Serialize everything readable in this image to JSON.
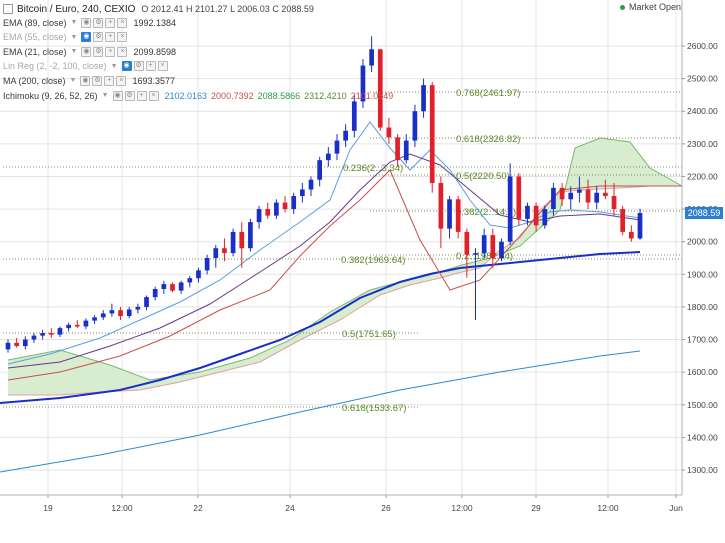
{
  "header": {
    "symbol": "Bitcoin / Euro, 240, CEXIO",
    "o_label": "O",
    "o_value": "2012.41",
    "h_label": "H",
    "h_value": "2101.27",
    "l_label": "L",
    "l_value": "2006.03",
    "c_label": "C",
    "c_value": "2088.59",
    "market_status": "Market Open"
  },
  "indicators": [
    {
      "name": "EMA (89, close)",
      "value": "1992.1384",
      "active": false,
      "faded": false
    },
    {
      "name": "EMA (55, close)",
      "value": "",
      "active": true,
      "faded": true
    },
    {
      "name": "EMA (21, close)",
      "value": "2099.8598",
      "active": false,
      "faded": false
    },
    {
      "name": "Lin Reg (2, -2, 100, close)",
      "value": "",
      "active": true,
      "faded": true
    },
    {
      "name": "MA (200, close)",
      "value": "1693.3577",
      "active": false,
      "faded": false
    },
    {
      "name": "Ichimoku (9, 26, 52, 26)",
      "values": [
        "2102.0163",
        "2000.7392",
        "2088.5866",
        "2312.4210",
        "2101.0549"
      ]
    }
  ],
  "price_axis": {
    "ticks": [
      "2600.00",
      "2500.00",
      "2400.00",
      "2300.00",
      "2200.00",
      "2100.00",
      "2000.00",
      "1900.00",
      "1800.00",
      "1700.00",
      "1600.00",
      "1500.00",
      "1400.00",
      "1300.00"
    ],
    "last_price": "2088.59"
  },
  "time_axis": {
    "ticks": [
      "19",
      "12:00",
      "22",
      "24",
      "26",
      "12:00",
      "29",
      "12:00",
      "Jun"
    ]
  },
  "fib_labels": [
    "0.768(2461.97)",
    "0.618(2326.82)",
    "0.236(2‥3.34)",
    "0.5(2220.50)",
    "0.382(2‥14.8)",
    "0.382(1969.64)",
    "0.2‥1982.64)",
    "0.5(1751.65)",
    "0.618(1533.67)"
  ],
  "colors": {
    "up": "#1a2ec8",
    "down": "#e0202a",
    "ma200": "#1a2ec8",
    "ema21": "#5aa0dc",
    "ema89": "#6a3a8a",
    "lagging": "#2a8ad4",
    "kumo": "#d8ecd0",
    "kumo_edge": "#7ab870",
    "kijun": "#c8504a",
    "fib": "#5a8a2a",
    "grid": "#e4e4e4",
    "accent": "#2a7fd4"
  },
  "chart_data": {
    "type": "candlestick",
    "symbol": "Bitcoin / Euro",
    "interval": "240",
    "ylim": [
      1300,
      2680
    ],
    "y_ticks": [
      2600,
      2500,
      2400,
      2300,
      2200,
      2100,
      2000,
      1900,
      1800,
      1700,
      1600,
      1500,
      1400,
      1300
    ],
    "candles": [
      [
        1670,
        1700,
        1660,
        1690
      ],
      [
        1690,
        1705,
        1675,
        1680
      ],
      [
        1680,
        1710,
        1670,
        1700
      ],
      [
        1700,
        1720,
        1690,
        1712
      ],
      [
        1712,
        1730,
        1700,
        1720
      ],
      [
        1720,
        1735,
        1705,
        1715
      ],
      [
        1715,
        1740,
        1708,
        1735
      ],
      [
        1735,
        1752,
        1725,
        1745
      ],
      [
        1745,
        1760,
        1735,
        1740
      ],
      [
        1740,
        1765,
        1732,
        1758
      ],
      [
        1758,
        1775,
        1748,
        1768
      ],
      [
        1768,
        1790,
        1760,
        1780
      ],
      [
        1780,
        1810,
        1770,
        1790
      ],
      [
        1790,
        1800,
        1760,
        1772
      ],
      [
        1772,
        1800,
        1765,
        1792
      ],
      [
        1792,
        1810,
        1780,
        1800
      ],
      [
        1800,
        1835,
        1790,
        1830
      ],
      [
        1830,
        1862,
        1820,
        1855
      ],
      [
        1855,
        1880,
        1840,
        1870
      ],
      [
        1870,
        1875,
        1845,
        1850
      ],
      [
        1850,
        1880,
        1840,
        1875
      ],
      [
        1875,
        1895,
        1860,
        1888
      ],
      [
        1888,
        1920,
        1875,
        1912
      ],
      [
        1912,
        1960,
        1900,
        1950
      ],
      [
        1950,
        1990,
        1920,
        1980
      ],
      [
        1980,
        2010,
        1940,
        1965
      ],
      [
        1965,
        2040,
        1955,
        2030
      ],
      [
        2030,
        2060,
        1920,
        1980
      ],
      [
        1980,
        2070,
        1970,
        2060
      ],
      [
        2060,
        2110,
        2040,
        2100
      ],
      [
        2100,
        2120,
        2070,
        2080
      ],
      [
        2080,
        2130,
        2070,
        2120
      ],
      [
        2120,
        2140,
        2090,
        2100
      ],
      [
        2100,
        2150,
        2085,
        2140
      ],
      [
        2140,
        2180,
        2120,
        2160
      ],
      [
        2160,
        2200,
        2140,
        2190
      ],
      [
        2190,
        2260,
        2170,
        2250
      ],
      [
        2250,
        2290,
        2230,
        2270
      ],
      [
        2270,
        2330,
        2250,
        2310
      ],
      [
        2310,
        2360,
        2290,
        2340
      ],
      [
        2340,
        2450,
        2320,
        2430
      ],
      [
        2430,
        2560,
        2410,
        2540
      ],
      [
        2540,
        2630,
        2520,
        2590
      ],
      [
        2590,
        2590,
        2340,
        2350
      ],
      [
        2350,
        2380,
        2300,
        2320
      ],
      [
        2320,
        2330,
        2230,
        2250
      ],
      [
        2250,
        2330,
        2240,
        2310
      ],
      [
        2310,
        2420,
        2290,
        2400
      ],
      [
        2400,
        2500,
        2380,
        2480
      ],
      [
        2480,
        2490,
        2150,
        2180
      ],
      [
        2180,
        2200,
        1980,
        2040
      ],
      [
        2040,
        2140,
        2010,
        2130
      ],
      [
        2130,
        2140,
        2010,
        2030
      ],
      [
        2030,
        2040,
        1890,
        1960
      ],
      [
        1960,
        1980,
        1760,
        1965
      ],
      [
        1965,
        2040,
        1950,
        2020
      ],
      [
        2020,
        2040,
        1920,
        1950
      ],
      [
        1950,
        2010,
        1940,
        2000
      ],
      [
        2000,
        2240,
        1990,
        2200
      ],
      [
        2200,
        2210,
        2050,
        2070
      ],
      [
        2070,
        2120,
        2050,
        2110
      ],
      [
        2110,
        2120,
        2030,
        2050
      ],
      [
        2050,
        2110,
        2040,
        2100
      ],
      [
        2100,
        2180,
        2080,
        2165
      ],
      [
        2165,
        2180,
        2110,
        2130
      ],
      [
        2130,
        2170,
        2100,
        2150
      ],
      [
        2150,
        2200,
        2120,
        2160
      ],
      [
        2160,
        2190,
        2100,
        2120
      ],
      [
        2120,
        2170,
        2100,
        2150
      ],
      [
        2150,
        2190,
        2130,
        2140
      ],
      [
        2140,
        2180,
        2080,
        2100
      ],
      [
        2100,
        2110,
        2020,
        2030
      ],
      [
        2030,
        2050,
        2000,
        2010
      ],
      [
        2010,
        2101,
        2006,
        2088
      ]
    ],
    "ma200_level": 1693.3577,
    "ema89_level": 1992.1384,
    "ema21_level": 2099.8598,
    "fib_levels": [
      2461.97,
      2326.82,
      2223.34,
      2220.5,
      2114.8,
      1982.64,
      1969.64,
      1751.65,
      1533.67
    ]
  }
}
